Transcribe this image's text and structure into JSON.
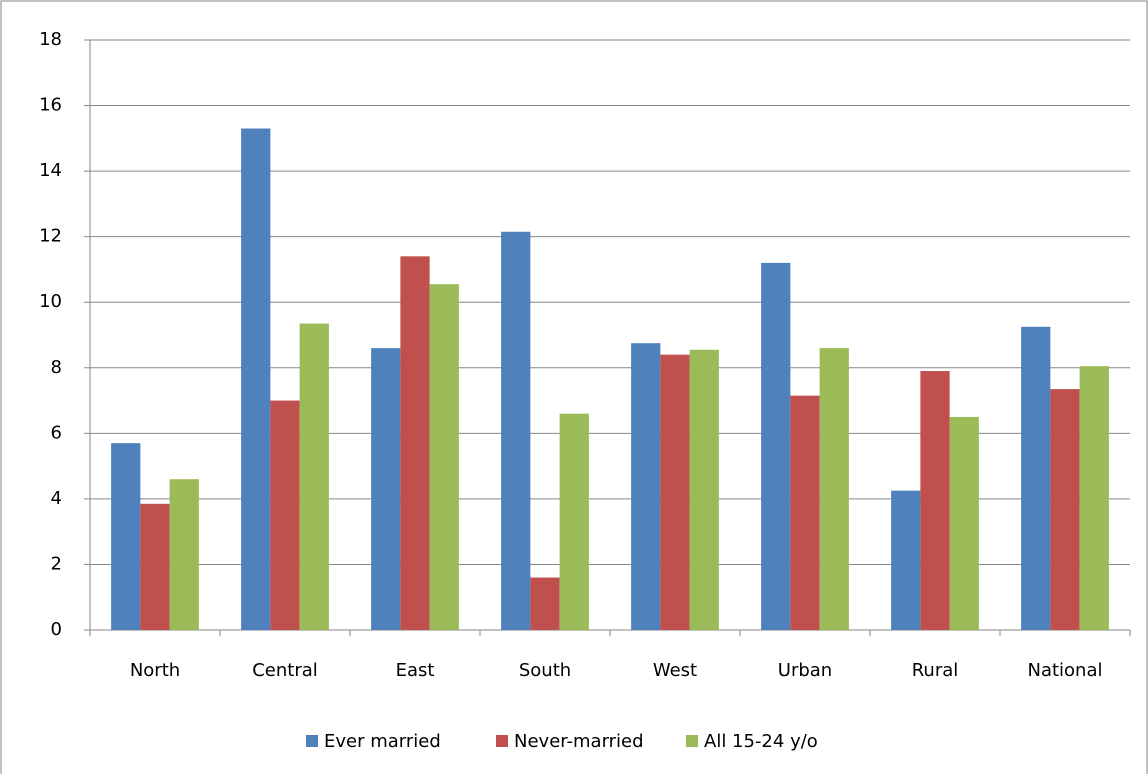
{
  "chart_data": {
    "type": "bar",
    "categories": [
      "North",
      "Central",
      "East",
      "South",
      "West",
      "Urban",
      "Rural",
      "National"
    ],
    "series": [
      {
        "name": "Ever married",
        "color": "#4f81bd",
        "values": [
          5.7,
          15.3,
          8.6,
          12.15,
          8.75,
          11.2,
          4.25,
          9.25
        ]
      },
      {
        "name": "Never-married",
        "color": "#c0504d",
        "values": [
          3.85,
          7.0,
          11.4,
          1.6,
          8.4,
          7.15,
          7.9,
          7.35
        ]
      },
      {
        "name": "All 15-24 y/o",
        "color": "#9bbb59",
        "values": [
          4.6,
          9.35,
          10.55,
          6.6,
          8.55,
          8.6,
          6.5,
          8.05
        ]
      }
    ],
    "ylim": [
      0,
      18
    ],
    "yticks": [
      0,
      2,
      4,
      6,
      8,
      10,
      12,
      14,
      16,
      18
    ],
    "grid": true,
    "legend": "bottom"
  }
}
